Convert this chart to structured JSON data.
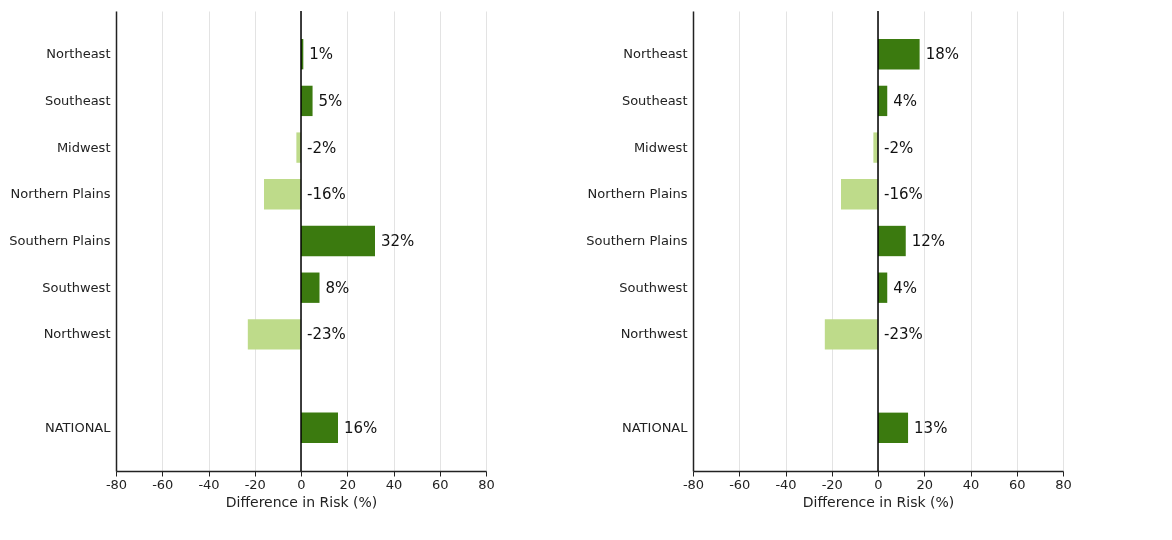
{
  "chart_data": [
    {
      "type": "bar",
      "orientation": "horizontal",
      "xlabel": "Difference in Risk (%)",
      "categories": [
        "Northeast",
        "Southeast",
        "Midwest",
        "Northern Plains",
        "Southern Plains",
        "Southwest",
        "Northwest",
        null,
        "NATIONAL"
      ],
      "values": [
        1,
        5,
        -2,
        -16,
        32,
        8,
        -23,
        null,
        16
      ],
      "value_labels": [
        "1%",
        "5%",
        "-2%",
        "-16%",
        "32%",
        "8%",
        "-23%",
        null,
        "16%"
      ],
      "colors": [
        "#3b7a0f",
        "#3b7a0f",
        "#bedb8a",
        "#bedb8a",
        "#3b7a0f",
        "#3b7a0f",
        "#bedb8a",
        null,
        "#3b7a0f"
      ],
      "xlim": [
        -80,
        80
      ],
      "xticks": [
        -80,
        -60,
        -40,
        -20,
        0,
        20,
        40,
        60,
        80
      ],
      "grid": "x",
      "ref_lines": [
        {
          "axis": "x",
          "value": 0,
          "color": "#000000"
        }
      ]
    },
    {
      "type": "bar",
      "orientation": "horizontal",
      "xlabel": "Difference in Risk (%)",
      "categories": [
        "Northeast",
        "Southeast",
        "Midwest",
        "Northern Plains",
        "Southern Plains",
        "Southwest",
        "Northwest",
        null,
        "NATIONAL"
      ],
      "values": [
        18,
        4,
        -2,
        -16,
        12,
        4,
        -23,
        null,
        13
      ],
      "value_labels": [
        "18%",
        "4%",
        "-2%",
        "-16%",
        "12%",
        "4%",
        "-23%",
        null,
        "13%"
      ],
      "colors": [
        "#3b7a0f",
        "#3b7a0f",
        "#bedb8a",
        "#bedb8a",
        "#3b7a0f",
        "#3b7a0f",
        "#bedb8a",
        null,
        "#3b7a0f"
      ],
      "xlim": [
        -80,
        80
      ],
      "xticks": [
        -80,
        -60,
        -40,
        -20,
        0,
        20,
        40,
        60,
        80
      ],
      "grid": "x",
      "ref_lines": [
        {
          "axis": "x",
          "value": 0,
          "color": "#000000"
        }
      ]
    }
  ]
}
